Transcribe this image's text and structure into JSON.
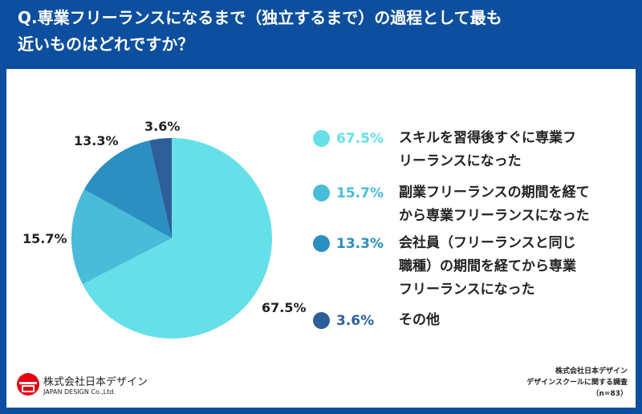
{
  "title": {
    "line1": "Q.専業フリーランスになるまで（独立するまで）の過程として最も",
    "line2": "近いものはどれですか？"
  },
  "chart_data": {
    "type": "pie",
    "start_angle": "top, clockwise",
    "slices": [
      {
        "label": "スキルを習得後すぐに専業フリーランスになった",
        "value": 67.5,
        "display": "67.5%",
        "color": "#66e0e8"
      },
      {
        "label": "副業フリーランスの期間を経てから専業フリーランスになった",
        "value": 15.7,
        "display": "15.7%",
        "color": "#48bcd8"
      },
      {
        "label": "会社員（フリーランスと同じ職種）の期間を経てから専業フリーランスになった",
        "value": 13.3,
        "display": "13.3%",
        "color": "#2b8fc1"
      },
      {
        "label": "その他",
        "value": 3.6,
        "display": "3.6%",
        "color": "#2d5e98"
      }
    ],
    "legend": "right"
  },
  "legend_lines": [
    [
      "スキルを習得後すぐに専業フ",
      "リーランスになった"
    ],
    [
      "副業フリーランスの期間を経て",
      "から専業フリーランスになった"
    ],
    [
      "会社員（フリーランスと同じ",
      "職種）の期間を経てから専業",
      "フリーランスになった"
    ],
    [
      "その他"
    ]
  ],
  "logo": {
    "name": "株式会社日本デザイン",
    "en": "JAPAN DESIGN Co.,Ltd."
  },
  "source": {
    "line1": "株式会社日本デザイン",
    "line2": "デザインスクールに関する調査",
    "line3": "（n=83）"
  }
}
